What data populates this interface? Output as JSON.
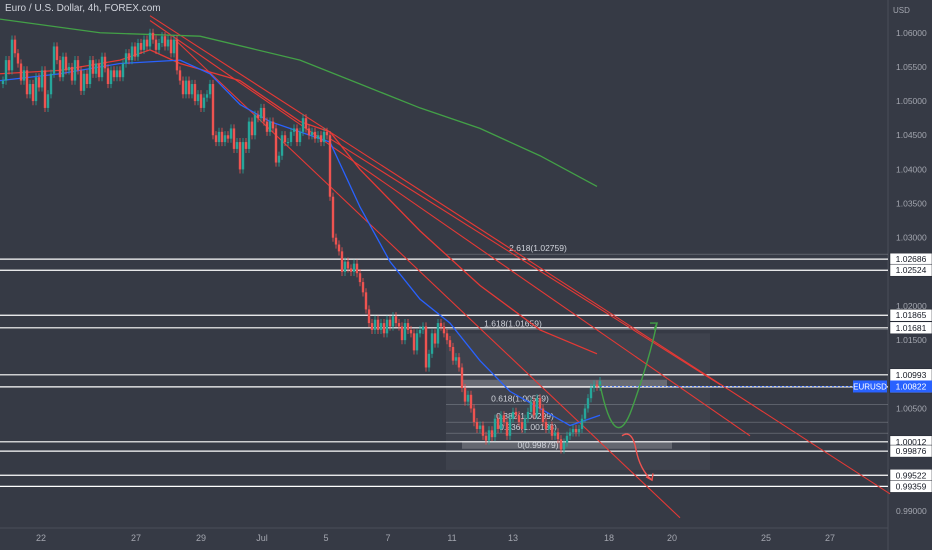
{
  "title": "Euro / U.S. Dollar, 4h, FOREX.com",
  "currency": "USD",
  "colors": {
    "background": "#363a45",
    "bull": "#26a69a",
    "bear": "#ef5350",
    "ma_fast": "#2962ff",
    "ma_mid": "#e53935",
    "ma_slow": "#43a047",
    "trendline": "#e53935",
    "level": "#ffffff",
    "price_badge": "#2962ff",
    "fib": "#d1d4dc"
  },
  "chart_data": {
    "type": "candlestick",
    "ylim": [
      0.9875,
      1.0648
    ],
    "y_ticks": [
      "1.06000",
      "1.05500",
      "1.05000",
      "1.04500",
      "1.04000",
      "1.03500",
      "1.03000",
      "1.02500",
      "1.02000",
      "1.01500",
      "1.01000",
      "1.00500",
      "1.00000",
      "0.99500",
      "0.99000"
    ],
    "x_ticks": [
      "22",
      "27",
      "29",
      "Jul",
      "5",
      "7",
      "11",
      "13",
      "18",
      "20",
      "25",
      "27"
    ],
    "current_price": {
      "label": "EURUSD",
      "value": "1.00822"
    },
    "horizontal_levels": [
      "1.02686",
      "1.02524",
      "1.01865",
      "1.01681",
      "1.00993",
      "1.00816",
      "1.00012",
      "0.99876",
      "0.99522",
      "0.99359"
    ],
    "fib_labels": [
      "2.618(1.02759)",
      "1.618(1.01659)",
      "0.618(1.00559)",
      "0.382(1.00299)",
      "0.236(1.00138)",
      "0(0.99879)"
    ],
    "price_path": [
      [
        0,
        1.0525
      ],
      [
        3,
        1.053
      ],
      [
        6,
        1.056
      ],
      [
        9,
        1.0545
      ],
      [
        12,
        1.059
      ],
      [
        15,
        1.057
      ],
      [
        18,
        1.0555
      ],
      [
        21,
        1.053
      ],
      [
        24,
        1.0545
      ],
      [
        27,
        1.051
      ],
      [
        30,
        1.0525
      ],
      [
        33,
        1.05
      ],
      [
        36,
        1.0535
      ],
      [
        39,
        1.052
      ],
      [
        42,
        1.0545
      ],
      [
        45,
        1.049
      ],
      [
        48,
        1.051
      ],
      [
        51,
        1.054
      ],
      [
        54,
        1.058
      ],
      [
        57,
        1.056
      ],
      [
        60,
        1.0535
      ],
      [
        63,
        1.0565
      ],
      [
        66,
        1.0545
      ],
      [
        69,
        1.055
      ],
      [
        72,
        1.053
      ],
      [
        75,
        1.056
      ],
      [
        78,
        1.0545
      ],
      [
        81,
        1.0515
      ],
      [
        84,
        1.054
      ],
      [
        87,
        1.0525
      ],
      [
        90,
        1.056
      ],
      [
        93,
        1.054
      ],
      [
        96,
        1.0555
      ],
      [
        99,
        1.0535
      ],
      [
        102,
        1.0565
      ],
      [
        105,
        1.0548
      ],
      [
        108,
        1.0525
      ],
      [
        111,
        1.0545
      ],
      [
        114,
        1.0535
      ],
      [
        117,
        1.0545
      ],
      [
        120,
        1.0535
      ],
      [
        123,
        1.0555
      ],
      [
        126,
        1.057
      ],
      [
        129,
        1.056
      ],
      [
        132,
        1.058
      ],
      [
        135,
        1.0565
      ],
      [
        138,
        1.0585
      ],
      [
        141,
        1.0575
      ],
      [
        144,
        1.059
      ],
      [
        147,
        1.058
      ],
      [
        150,
        1.06
      ],
      [
        153,
        1.059
      ],
      [
        156,
        1.0575
      ],
      [
        159,
        1.0585
      ],
      [
        162,
        1.0595
      ],
      [
        165,
        1.058
      ],
      [
        168,
        1.059
      ],
      [
        171,
        1.057
      ],
      [
        174,
        1.059
      ],
      [
        177,
        1.0545
      ],
      [
        180,
        1.053
      ],
      [
        183,
        1.051
      ],
      [
        186,
        1.053
      ],
      [
        189,
        1.051
      ],
      [
        192,
        1.0525
      ],
      [
        195,
        1.05
      ],
      [
        198,
        1.051
      ],
      [
        201,
        1.049
      ],
      [
        204,
        1.0505
      ],
      [
        207,
        1.051
      ],
      [
        210,
        1.0525
      ],
      [
        213,
        1.045
      ],
      [
        216,
        1.044
      ],
      [
        219,
        1.0455
      ],
      [
        222,
        1.044
      ],
      [
        225,
        1.045
      ],
      [
        228,
        1.0445
      ],
      [
        231,
        1.046
      ],
      [
        234,
        1.043
      ],
      [
        237,
        1.044
      ],
      [
        240,
        1.04
      ],
      [
        243,
        1.044
      ],
      [
        246,
        1.043
      ],
      [
        249,
        1.047
      ],
      [
        252,
        1.045
      ],
      [
        255,
        1.048
      ],
      [
        258,
        1.0475
      ],
      [
        261,
        1.049
      ],
      [
        264,
        1.047
      ],
      [
        267,
        1.0455
      ],
      [
        270,
        1.047
      ],
      [
        273,
        1.046
      ],
      [
        276,
        1.041
      ],
      [
        279,
        1.042
      ],
      [
        282,
        1.045
      ],
      [
        285,
        1.044
      ],
      [
        288,
        1.044
      ],
      [
        291,
        1.0455
      ],
      [
        294,
        1.046
      ],
      [
        297,
        1.044
      ],
      [
        300,
        1.0455
      ],
      [
        303,
        1.0475
      ],
      [
        306,
        1.046
      ],
      [
        309,
        1.045
      ],
      [
        312,
        1.0455
      ],
      [
        315,
        1.0445
      ],
      [
        318,
        1.045
      ],
      [
        321,
        1.044
      ],
      [
        324,
        1.0455
      ],
      [
        327,
        1.045
      ],
      [
        330,
        1.036
      ],
      [
        333,
        1.03
      ],
      [
        336,
        1.029
      ],
      [
        339,
        1.028
      ],
      [
        342,
        1.025
      ],
      [
        345,
        1.0265
      ],
      [
        348,
        1.0255
      ],
      [
        351,
        1.025
      ],
      [
        354,
        1.0262
      ],
      [
        357,
        1.0248
      ],
      [
        360,
        1.0235
      ],
      [
        363,
        1.022
      ],
      [
        366,
        1.0195
      ],
      [
        369,
        1.0175
      ],
      [
        372,
        1.0165
      ],
      [
        375,
        1.018
      ],
      [
        378,
        1.0165
      ],
      [
        381,
        1.0175
      ],
      [
        384,
        1.016
      ],
      [
        387,
        1.018
      ],
      [
        390,
        1.017
      ],
      [
        393,
        1.0185
      ],
      [
        396,
        1.0175
      ],
      [
        399,
        1.017
      ],
      [
        402,
        1.015
      ],
      [
        405,
        1.0175
      ],
      [
        408,
        1.0165
      ],
      [
        411,
        1.016
      ],
      [
        414,
        1.0135
      ],
      [
        417,
        1.016
      ],
      [
        420,
        1.0165
      ],
      [
        423,
        1.017
      ],
      [
        426,
        1.011
      ],
      [
        429,
        1.013
      ],
      [
        432,
        1.016
      ],
      [
        435,
        1.0145
      ],
      [
        438,
        1.0175
      ],
      [
        441,
        1.017
      ],
      [
        444,
        1.016
      ],
      [
        447,
        1.015
      ],
      [
        450,
        1.014
      ],
      [
        453,
        1.012
      ],
      [
        456,
        1.0125
      ],
      [
        459,
        1.011
      ],
      [
        462,
        1.008
      ],
      [
        465,
        1.006
      ],
      [
        468,
        1.007
      ],
      [
        471,
        1.005
      ],
      [
        474,
        1.003
      ],
      [
        477,
        1.002
      ],
      [
        480,
        1.0025
      ],
      [
        483,
        1.001
      ],
      [
        486,
        1.0003
      ],
      [
        489,
        1.0018
      ],
      [
        492,
        1.0008
      ],
      [
        495,
        1.0035
      ],
      [
        498,
        1.002
      ],
      [
        501,
        1.004
      ],
      [
        504,
        1.003
      ],
      [
        507,
        1.001
      ],
      [
        510,
        1.0035
      ],
      [
        513,
        1.0045
      ],
      [
        516,
        1.004
      ],
      [
        519,
        1.003
      ],
      [
        522,
        1.002
      ],
      [
        525,
        1.0035
      ],
      [
        528,
        1.0045
      ],
      [
        531,
        1.006
      ],
      [
        534,
        1.004
      ],
      [
        537,
        1.0065
      ],
      [
        540,
        1.005
      ],
      [
        543,
        1.003
      ],
      [
        546,
        1.002
      ],
      [
        549,
        1.0025
      ],
      [
        552,
        1.001
      ],
      [
        555,
        1.0015
      ],
      [
        558,
        1.0005
      ],
      [
        561,
        0.999
      ],
      [
        564,
        1.0
      ],
      [
        567,
        1.001
      ],
      [
        570,
        1.0015
      ],
      [
        573,
        1.002
      ],
      [
        576,
        1.0015
      ],
      [
        579,
        1.002
      ],
      [
        582,
        1.0035
      ],
      [
        585,
        1.005
      ],
      [
        588,
        1.0065
      ],
      [
        591,
        1.008
      ],
      [
        594,
        1.0085
      ],
      [
        597,
        1.0082
      ],
      [
        600,
        1.009
      ]
    ],
    "ma_fast": [
      [
        0,
        1.053
      ],
      [
        60,
        1.054
      ],
      [
        120,
        1.0555
      ],
      [
        180,
        1.056
      ],
      [
        210,
        1.054
      ],
      [
        240,
        1.0495
      ],
      [
        270,
        1.047
      ],
      [
        300,
        1.0455
      ],
      [
        330,
        1.044
      ],
      [
        360,
        1.0345
      ],
      [
        390,
        1.0265
      ],
      [
        420,
        1.021
      ],
      [
        450,
        1.0175
      ],
      [
        480,
        1.012
      ],
      [
        510,
        1.0075
      ],
      [
        540,
        1.005
      ],
      [
        570,
        1.0025
      ],
      [
        600,
        1.004
      ]
    ],
    "ma_mid": [
      [
        0,
        1.054
      ],
      [
        60,
        1.0545
      ],
      [
        120,
        1.056
      ],
      [
        150,
        1.0575
      ],
      [
        180,
        1.0555
      ],
      [
        240,
        1.053
      ],
      [
        300,
        1.047
      ],
      [
        330,
        1.0455
      ],
      [
        360,
        1.04
      ],
      [
        420,
        1.031
      ],
      [
        480,
        1.023
      ],
      [
        540,
        1.0165
      ],
      [
        597,
        1.013
      ]
    ],
    "ma_slow": [
      [
        0,
        1.062
      ],
      [
        100,
        1.06
      ],
      [
        200,
        1.0595
      ],
      [
        300,
        1.056
      ],
      [
        360,
        1.0525
      ],
      [
        420,
        1.049
      ],
      [
        480,
        1.046
      ],
      [
        540,
        1.042
      ],
      [
        597,
        1.0375
      ]
    ]
  }
}
